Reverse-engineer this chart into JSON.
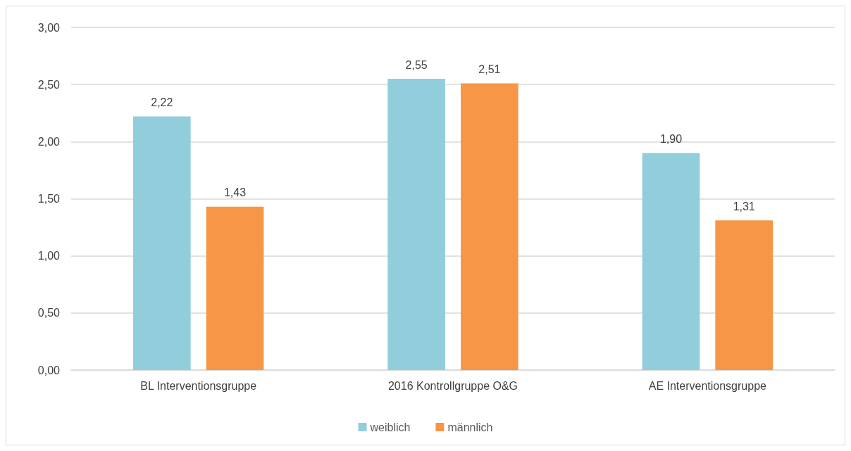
{
  "chart_data": {
    "type": "bar",
    "categories": [
      "BL Interventionsgruppe",
      "2016 Kontrollgruppe O&G",
      "AE Interventionsgruppe"
    ],
    "series": [
      {
        "name": "weiblich",
        "color": "#92cddc",
        "values": [
          2.22,
          2.55,
          1.9
        ],
        "value_labels": [
          "2,22",
          "2,55",
          "1,90"
        ]
      },
      {
        "name": "männlich",
        "color": "#f79646",
        "values": [
          1.43,
          2.51,
          1.31
        ],
        "value_labels": [
          "1,43",
          "2,51",
          "1,31"
        ]
      }
    ],
    "ylim": [
      0,
      3
    ],
    "yticks": [
      {
        "value": 0,
        "label": "0,00"
      },
      {
        "value": 0.5,
        "label": "0,50"
      },
      {
        "value": 1,
        "label": "1,00"
      },
      {
        "value": 1.5,
        "label": "1,50"
      },
      {
        "value": 2,
        "label": "2,00"
      },
      {
        "value": 2.5,
        "label": "2,50"
      },
      {
        "value": 3,
        "label": "3,00"
      }
    ],
    "grid": "y",
    "legend": "bottom"
  }
}
